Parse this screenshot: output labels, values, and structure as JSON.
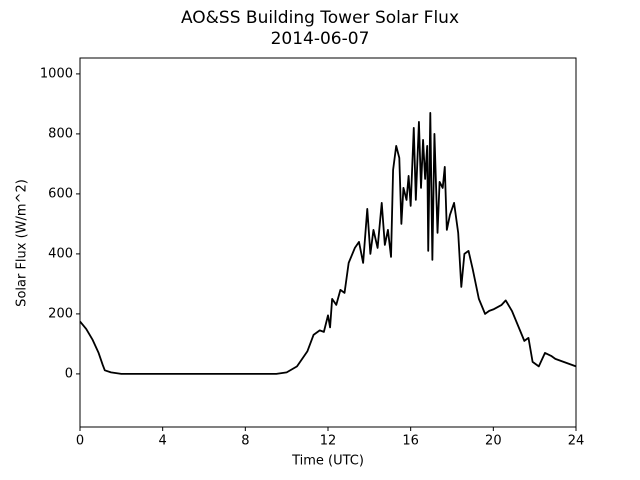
{
  "chart_data": {
    "type": "line",
    "title": "AO&SS Building Tower Solar Flux",
    "subtitle": "2014-06-07",
    "x_label": "Time (UTC)",
    "y_label": "Solar Flux (W/m^2)",
    "color": "#000000",
    "x": [
      0,
      0.3,
      0.6,
      0.9,
      1.1,
      1.2,
      1.5,
      2,
      4,
      8,
      9.5,
      10,
      10.5,
      11,
      11.3,
      11.6,
      11.8,
      12,
      12.1,
      12.2,
      12.4,
      12.6,
      12.8,
      13,
      13.3,
      13.5,
      13.7,
      13.9,
      14.05,
      14.2,
      14.4,
      14.6,
      14.75,
      14.9,
      15.05,
      15.15,
      15.3,
      15.45,
      15.55,
      15.65,
      15.8,
      15.9,
      16.0,
      16.15,
      16.25,
      16.4,
      16.5,
      16.6,
      16.7,
      16.8,
      16.85,
      16.95,
      17.05,
      17.15,
      17.3,
      17.4,
      17.55,
      17.65,
      17.75,
      17.9,
      18.1,
      18.3,
      18.45,
      18.6,
      18.8,
      19.0,
      19.3,
      19.6,
      19.8,
      20.0,
      20.4,
      20.6,
      20.9,
      21.2,
      21.5,
      21.7,
      21.9,
      22.2,
      22.5,
      22.8,
      23.0,
      23.4,
      24
    ],
    "values": [
      175,
      150,
      115,
      70,
      30,
      12,
      5,
      0,
      0,
      0,
      0,
      5,
      25,
      75,
      130,
      145,
      140,
      195,
      155,
      250,
      230,
      280,
      270,
      370,
      420,
      440,
      370,
      550,
      400,
      480,
      420,
      570,
      430,
      480,
      390,
      680,
      760,
      720,
      500,
      620,
      580,
      660,
      560,
      820,
      580,
      840,
      620,
      780,
      650,
      760,
      410,
      870,
      380,
      800,
      470,
      640,
      620,
      690,
      480,
      530,
      570,
      470,
      290,
      400,
      410,
      350,
      250,
      200,
      210,
      215,
      230,
      245,
      210,
      160,
      110,
      120,
      40,
      25,
      70,
      60,
      50,
      40,
      25
    ],
    "xlim": [
      0,
      24
    ],
    "xticks": [
      0,
      4,
      8,
      12,
      16,
      20,
      24
    ],
    "ylim": [
      -177,
      1053
    ],
    "yticks": [
      0,
      200,
      400,
      600,
      800,
      1000
    ]
  }
}
